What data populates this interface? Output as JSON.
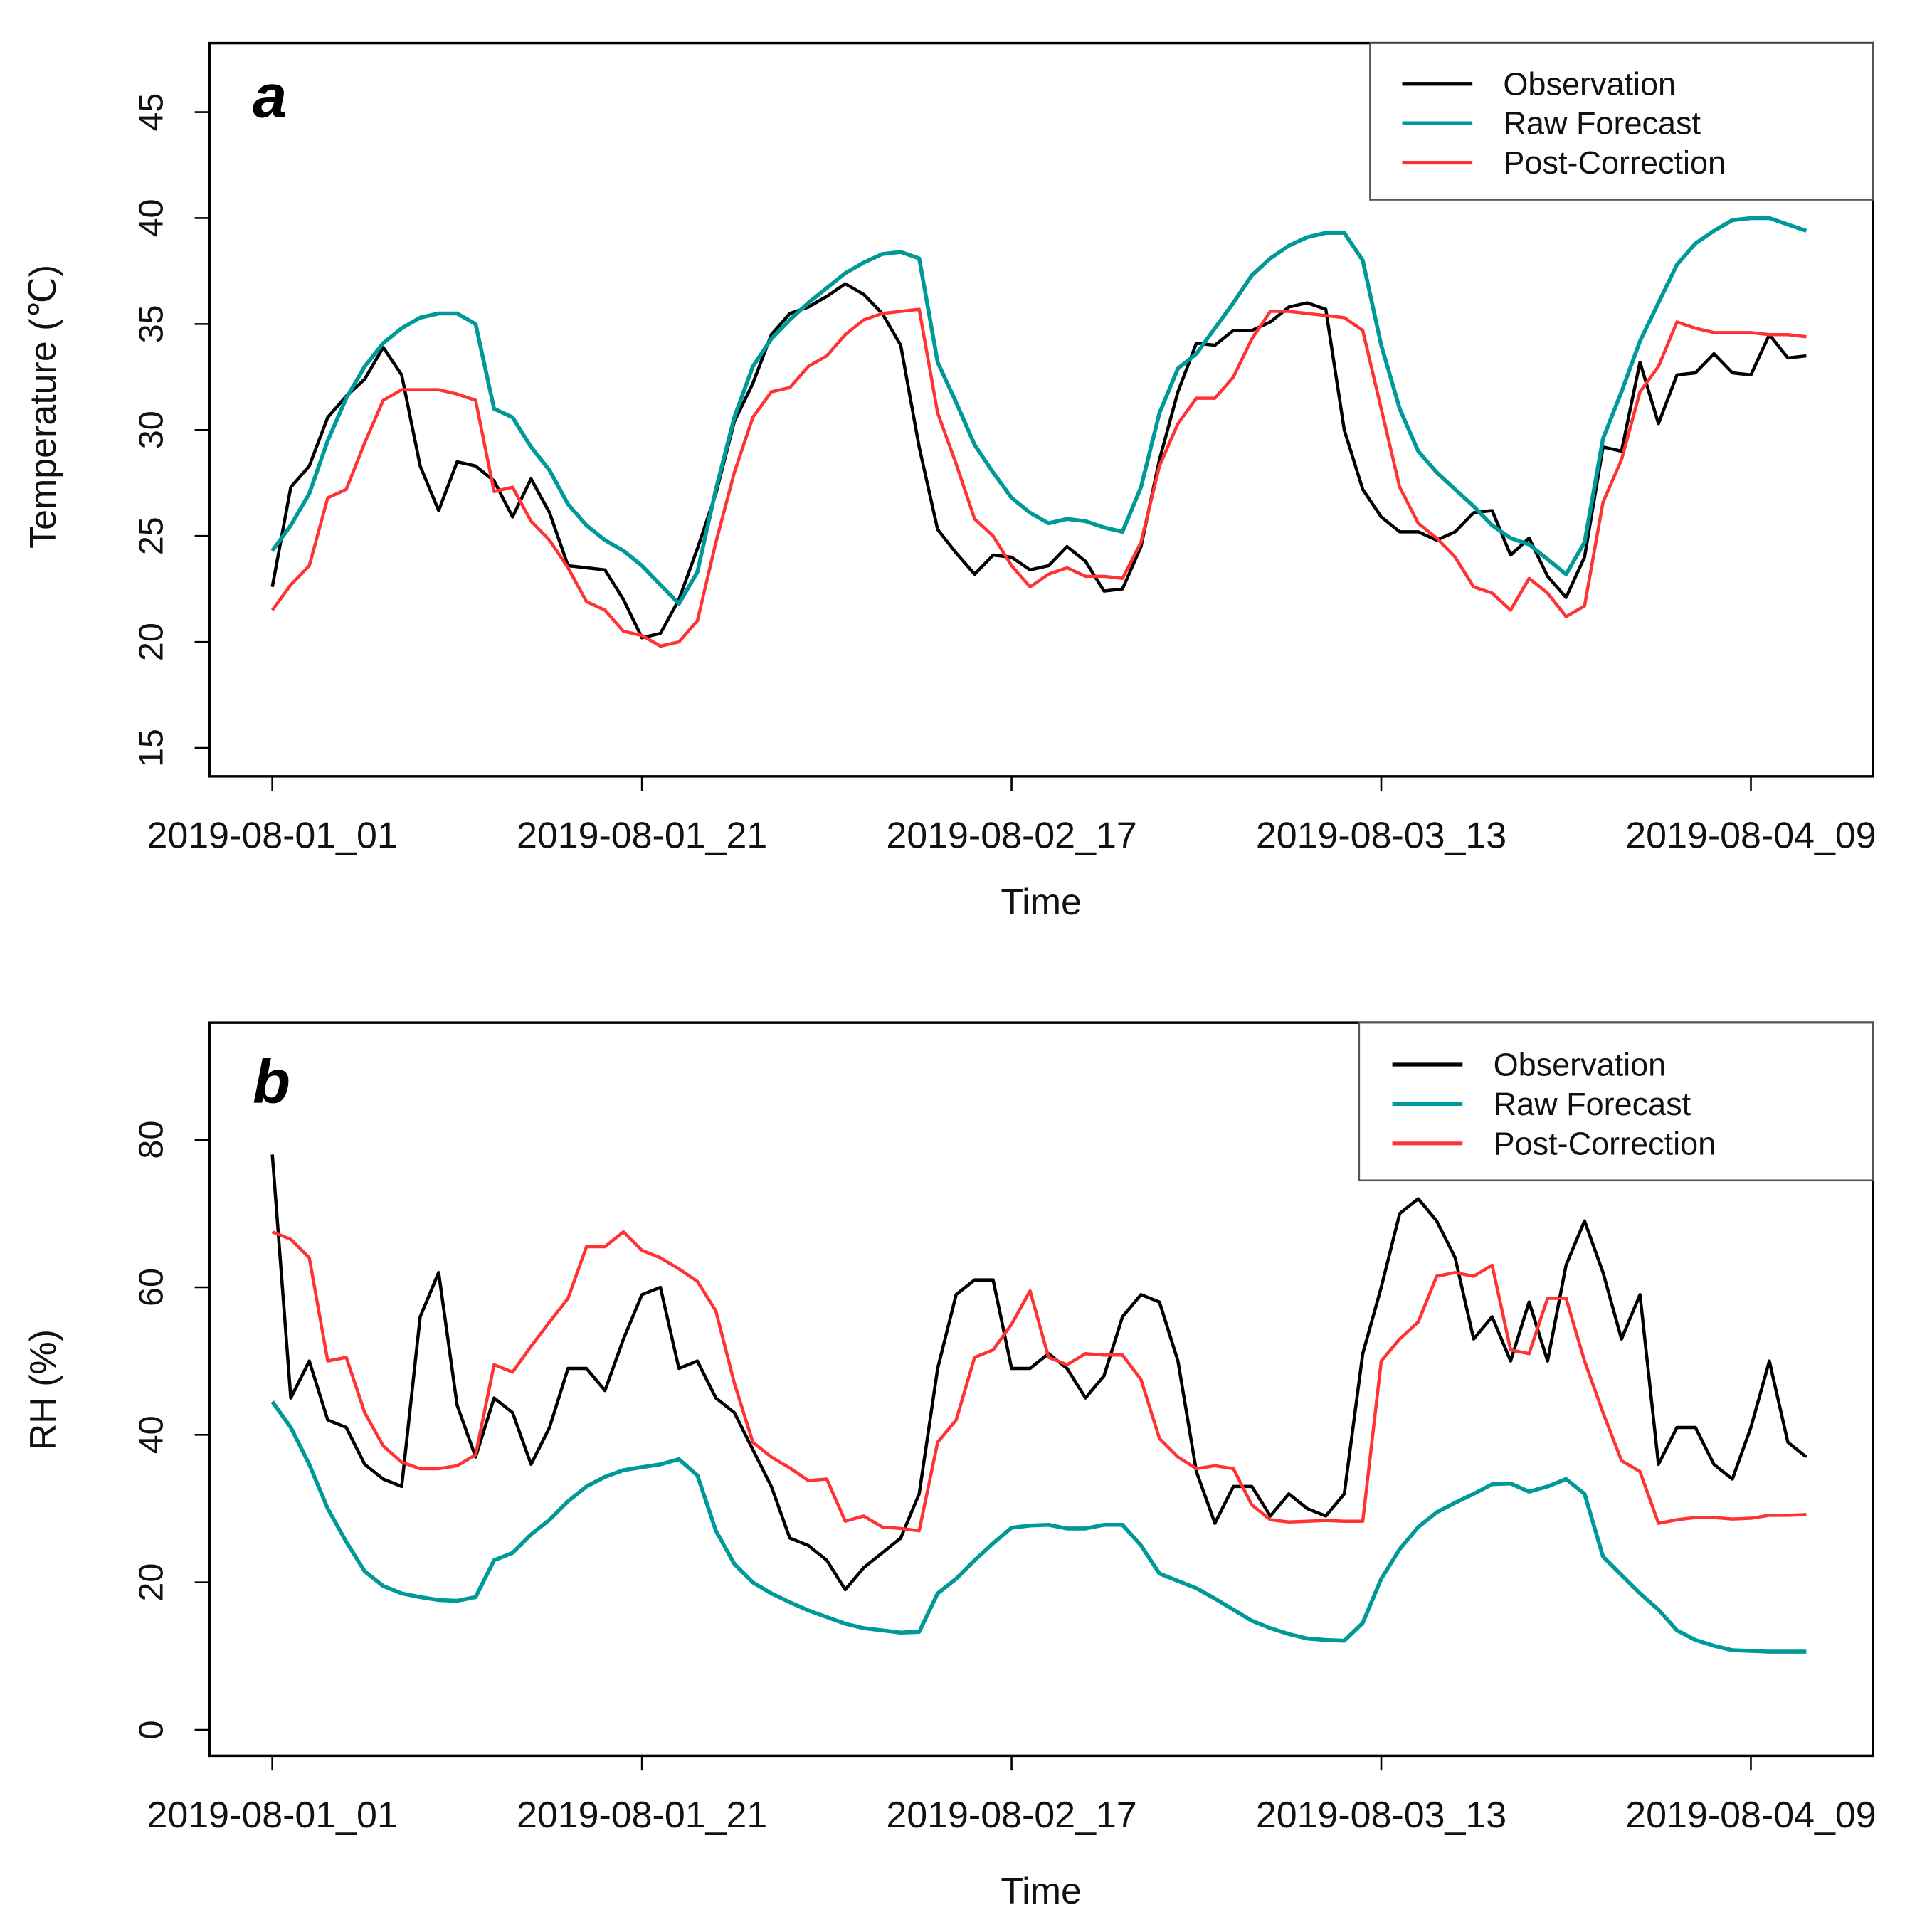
{
  "chart_data": [
    {
      "type": "line",
      "panel_label": "a",
      "xlabel": "Time",
      "ylabel": "Temperature (℃)",
      "ylim": [
        15,
        45
      ],
      "yticks": [
        15,
        20,
        25,
        30,
        35,
        40,
        45
      ],
      "x_start_label": "2019-08-01_01",
      "x_step": "1 hour",
      "xticks": [
        {
          "index": 0,
          "label": "2019-08-01_01"
        },
        {
          "index": 20,
          "label": "2019-08-01_21"
        },
        {
          "index": 40,
          "label": "2019-08-02_17"
        },
        {
          "index": 60,
          "label": "2019-08-03_13"
        },
        {
          "index": 80,
          "label": "2019-08-04_09"
        }
      ],
      "legend_position": "top-right",
      "series": [
        {
          "name": "Observation",
          "color": "#000000",
          "values": [
            22.6,
            27.3,
            28.3,
            30.6,
            31.6,
            32.4,
            33.9,
            32.6,
            28.3,
            26.2,
            28.5,
            28.3,
            27.6,
            25.9,
            27.7,
            26.1,
            23.6,
            23.5,
            23.4,
            22.0,
            20.2,
            20.4,
            22.0,
            24.4,
            27.0,
            30.4,
            32.2,
            34.5,
            35.5,
            35.8,
            36.3,
            36.9,
            36.4,
            35.5,
            34.0,
            29.2,
            25.3,
            24.2,
            23.2,
            24.1,
            24.0,
            23.4,
            23.6,
            24.5,
            23.8,
            22.4,
            22.5,
            24.5,
            28.6,
            31.8,
            34.1,
            34.0,
            34.7,
            34.7,
            35.1,
            35.8,
            36.0,
            35.7,
            30.0,
            27.2,
            25.9,
            25.2,
            25.2,
            24.8,
            25.2,
            26.1,
            26.2,
            24.1,
            24.9,
            23.1,
            22.1,
            24.0,
            29.2,
            29.0,
            33.2,
            30.3,
            32.6,
            32.7,
            33.6,
            32.7,
            32.6,
            34.5,
            33.4,
            33.5
          ]
        },
        {
          "name": "Raw Forecast",
          "color": "#009999",
          "values": [
            24.3,
            25.5,
            27.0,
            29.5,
            31.5,
            33.0,
            34.1,
            34.8,
            35.3,
            35.5,
            35.5,
            35.0,
            31.0,
            30.6,
            29.2,
            28.1,
            26.5,
            25.5,
            24.8,
            24.3,
            23.6,
            22.7,
            21.8,
            23.3,
            27.2,
            30.6,
            33.0,
            34.3,
            35.2,
            36.0,
            36.7,
            37.4,
            37.9,
            38.3,
            38.4,
            38.1,
            33.2,
            31.3,
            29.3,
            28.0,
            26.8,
            26.1,
            25.6,
            25.8,
            25.7,
            25.4,
            25.2,
            27.3,
            30.8,
            32.9,
            33.6,
            34.8,
            36.0,
            37.3,
            38.1,
            38.7,
            39.1,
            39.3,
            39.3,
            38.0,
            34.0,
            31.0,
            29.0,
            28.0,
            27.2,
            26.4,
            25.5,
            24.9,
            24.6,
            23.9,
            23.2,
            24.7,
            29.6,
            31.8,
            34.2,
            36.0,
            37.8,
            38.8,
            39.4,
            39.9,
            40.0,
            40.0,
            39.7,
            39.4
          ]
        },
        {
          "name": "Post-Correction",
          "color": "#ff3333",
          "values": [
            21.5,
            22.7,
            23.6,
            26.8,
            27.2,
            29.4,
            31.4,
            31.9,
            31.9,
            31.9,
            31.7,
            31.4,
            27.1,
            27.3,
            25.7,
            24.8,
            23.5,
            21.9,
            21.5,
            20.5,
            20.3,
            19.8,
            20.0,
            21.0,
            24.7,
            28.0,
            30.6,
            31.8,
            32.0,
            33.0,
            33.5,
            34.5,
            35.2,
            35.5,
            35.6,
            35.7,
            30.8,
            28.4,
            25.8,
            25.0,
            23.6,
            22.6,
            23.2,
            23.5,
            23.1,
            23.1,
            23.0,
            24.7,
            28.3,
            30.3,
            31.5,
            31.5,
            32.5,
            34.3,
            35.6,
            35.6,
            35.5,
            35.4,
            35.3,
            34.7,
            31.0,
            27.3,
            25.6,
            24.9,
            24.0,
            22.6,
            22.3,
            21.5,
            23.0,
            22.3,
            21.2,
            21.7,
            26.6,
            28.6,
            31.8,
            33.0,
            35.1,
            34.8,
            34.6,
            34.6,
            34.6,
            34.5,
            34.5,
            34.4
          ]
        }
      ]
    },
    {
      "type": "line",
      "panel_label": "b",
      "xlabel": "Time",
      "ylabel": "RH (%)",
      "ylim": [
        0,
        80
      ],
      "yticks": [
        0,
        20,
        40,
        60,
        80
      ],
      "x_start_label": "2019-08-01_01",
      "x_step": "1 hour",
      "xticks": [
        {
          "index": 0,
          "label": "2019-08-01_01"
        },
        {
          "index": 20,
          "label": "2019-08-01_21"
        },
        {
          "index": 40,
          "label": "2019-08-02_17"
        },
        {
          "index": 60,
          "label": "2019-08-03_13"
        },
        {
          "index": 80,
          "label": "2019-08-04_09"
        }
      ],
      "legend_position": "top-right",
      "series": [
        {
          "name": "Observation",
          "color": "#000000",
          "values": [
            78,
            45,
            50,
            42,
            41,
            36,
            34,
            33,
            56,
            62,
            44,
            37,
            45,
            43,
            36,
            41,
            49,
            49,
            46,
            53,
            59,
            60,
            49,
            50,
            45,
            43,
            38,
            33,
            26,
            25,
            23,
            19,
            22,
            24,
            26,
            32,
            49,
            59,
            61,
            61,
            49,
            49,
            51,
            49,
            45,
            48,
            56,
            59,
            58,
            50,
            35,
            28,
            33,
            33,
            29,
            32,
            30,
            29,
            32,
            51,
            60,
            70,
            72,
            69,
            64,
            53,
            56,
            50,
            58,
            50,
            63,
            69,
            62,
            53,
            59,
            36,
            41,
            41,
            36,
            34,
            41,
            50,
            39,
            37
          ]
        },
        {
          "name": "Raw Forecast",
          "color": "#009999",
          "values": [
            44.5,
            41,
            36,
            30,
            25.5,
            21.5,
            19.5,
            18.5,
            18,
            17.6,
            17.5,
            18,
            23,
            24,
            26.5,
            28.5,
            31,
            33,
            34.3,
            35.2,
            35.6,
            36,
            36.7,
            34.5,
            27,
            22.5,
            20,
            18.5,
            17.3,
            16.2,
            15.3,
            14.4,
            13.8,
            13.5,
            13.2,
            13.3,
            18.5,
            20.5,
            23,
            25.3,
            27.4,
            27.7,
            27.8,
            27.3,
            27.3,
            27.8,
            27.8,
            25,
            21.2,
            20.2,
            19.2,
            17.8,
            16.3,
            14.8,
            13.8,
            13,
            12.4,
            12.2,
            12.1,
            14.5,
            20.5,
            24.5,
            27.5,
            29.5,
            30.8,
            32,
            33.3,
            33.4,
            32.3,
            33,
            34,
            32,
            23.5,
            21,
            18.5,
            16.3,
            13.5,
            12.2,
            11.4,
            10.8,
            10.7,
            10.6,
            10.6,
            10.6
          ]
        },
        {
          "name": "Post-Correction",
          "color": "#ff3333",
          "values": [
            67.5,
            66.5,
            64,
            50,
            50.5,
            43,
            38.5,
            36.3,
            35.4,
            35.4,
            35.8,
            37.3,
            49.5,
            48.5,
            52,
            55.3,
            58.5,
            65.5,
            65.5,
            67.5,
            65,
            64,
            62.5,
            60.8,
            56.8,
            47,
            39,
            37,
            35.5,
            33.8,
            34,
            28.3,
            29,
            27.5,
            27.3,
            27,
            39,
            42,
            50.5,
            51.5,
            55,
            59.5,
            50.5,
            49.5,
            51,
            50.8,
            50.8,
            47.5,
            39.5,
            37,
            35.4,
            35.8,
            35.4,
            30.5,
            28.5,
            28.2,
            28.3,
            28.4,
            28.3,
            28.3,
            50,
            53,
            55.3,
            61.5,
            62,
            61.5,
            63,
            51.5,
            51,
            58.5,
            58.5,
            50,
            43,
            36.5,
            35,
            28,
            28.5,
            28.8,
            28.8,
            28.6,
            28.7,
            29.1,
            29.1,
            29.2
          ]
        }
      ]
    }
  ]
}
